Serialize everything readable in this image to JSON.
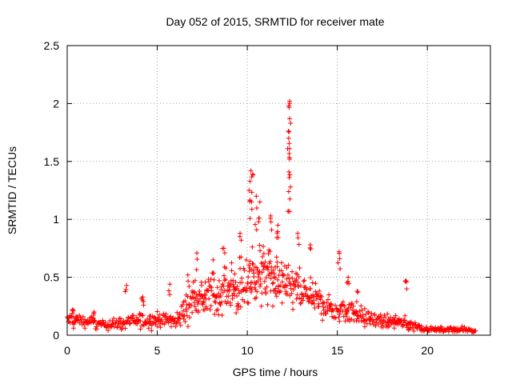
{
  "chart_data": {
    "type": "scatter",
    "title": "Day 052 of 2015, SRMTID for receiver mate",
    "xlabel": "GPS time / hours",
    "ylabel": "SRMTID / TECUs",
    "xlim": [
      0,
      23.5
    ],
    "ylim": [
      0,
      2.5
    ],
    "x_ticks": [
      0,
      5,
      10,
      15,
      20
    ],
    "x_tick_labels": [
      "0",
      "5",
      "10",
      "15",
      "20"
    ],
    "y_ticks": [
      0,
      0.5,
      1,
      1.5,
      2,
      2.5
    ],
    "y_tick_labels": [
      "0",
      "0.5",
      "1",
      "1.5",
      "2",
      "2.5"
    ],
    "grid": true,
    "marker": "+",
    "colors": {
      "series": "#ff0000",
      "axis": "#000000",
      "grid": "#a0a0a0"
    },
    "series": [
      {
        "name": "SRMTID",
        "profile_x": [
          0,
          1,
          2,
          3,
          4,
          5,
          5.5,
          6,
          6.5,
          7,
          7.5,
          8,
          8.5,
          9,
          9.5,
          10,
          10.5,
          11,
          11.5,
          12,
          12.5,
          13,
          13.5,
          14,
          14.5,
          15,
          15.5,
          16,
          16.5,
          17,
          17.5,
          18,
          18.5,
          19,
          19.5,
          20,
          20.5,
          21,
          22,
          22.7
        ],
        "profile_median": [
          0.13,
          0.12,
          0.09,
          0.1,
          0.13,
          0.13,
          0.14,
          0.12,
          0.2,
          0.32,
          0.32,
          0.34,
          0.36,
          0.38,
          0.41,
          0.46,
          0.52,
          0.52,
          0.48,
          0.44,
          0.41,
          0.36,
          0.33,
          0.28,
          0.24,
          0.2,
          0.23,
          0.2,
          0.15,
          0.13,
          0.12,
          0.11,
          0.1,
          0.1,
          0.07,
          0.05,
          0.05,
          0.05,
          0.05,
          0.04
        ],
        "profile_spread": [
          0.06,
          0.05,
          0.04,
          0.05,
          0.06,
          0.06,
          0.06,
          0.06,
          0.12,
          0.14,
          0.14,
          0.15,
          0.16,
          0.17,
          0.19,
          0.22,
          0.24,
          0.23,
          0.21,
          0.2,
          0.18,
          0.15,
          0.13,
          0.12,
          0.1,
          0.09,
          0.1,
          0.09,
          0.07,
          0.06,
          0.05,
          0.05,
          0.05,
          0.05,
          0.03,
          0.02,
          0.02,
          0.02,
          0.02,
          0.02
        ],
        "peaks": [
          {
            "x": 0.3,
            "y": 0.22
          },
          {
            "x": 1.5,
            "y": 0.2
          },
          {
            "x": 3.3,
            "y": 0.43
          },
          {
            "x": 4.2,
            "y": 0.33
          },
          {
            "x": 5.7,
            "y": 0.44
          },
          {
            "x": 6.7,
            "y": 0.52
          },
          {
            "x": 7.2,
            "y": 0.71
          },
          {
            "x": 8.1,
            "y": 0.65
          },
          {
            "x": 8.7,
            "y": 0.75
          },
          {
            "x": 9.6,
            "y": 0.88
          },
          {
            "x": 10.1,
            "y": 1.25
          },
          {
            "x": 10.2,
            "y": 1.42
          },
          {
            "x": 10.3,
            "y": 1.39
          },
          {
            "x": 10.5,
            "y": 1.2
          },
          {
            "x": 10.7,
            "y": 1.15
          },
          {
            "x": 11.3,
            "y": 1.03
          },
          {
            "x": 11.7,
            "y": 0.95
          },
          {
            "x": 12.3,
            "y": 1.24
          },
          {
            "x": 12.35,
            "y": 1.52
          },
          {
            "x": 12.3,
            "y": 1.7
          },
          {
            "x": 12.35,
            "y": 1.87
          },
          {
            "x": 12.3,
            "y": 1.98
          },
          {
            "x": 12.35,
            "y": 2.02
          },
          {
            "x": 12.8,
            "y": 0.88
          },
          {
            "x": 13.5,
            "y": 0.78
          },
          {
            "x": 15.1,
            "y": 0.72
          },
          {
            "x": 15.6,
            "y": 0.5
          },
          {
            "x": 16.1,
            "y": 0.38
          },
          {
            "x": 18.8,
            "y": 0.47
          }
        ]
      }
    ]
  }
}
